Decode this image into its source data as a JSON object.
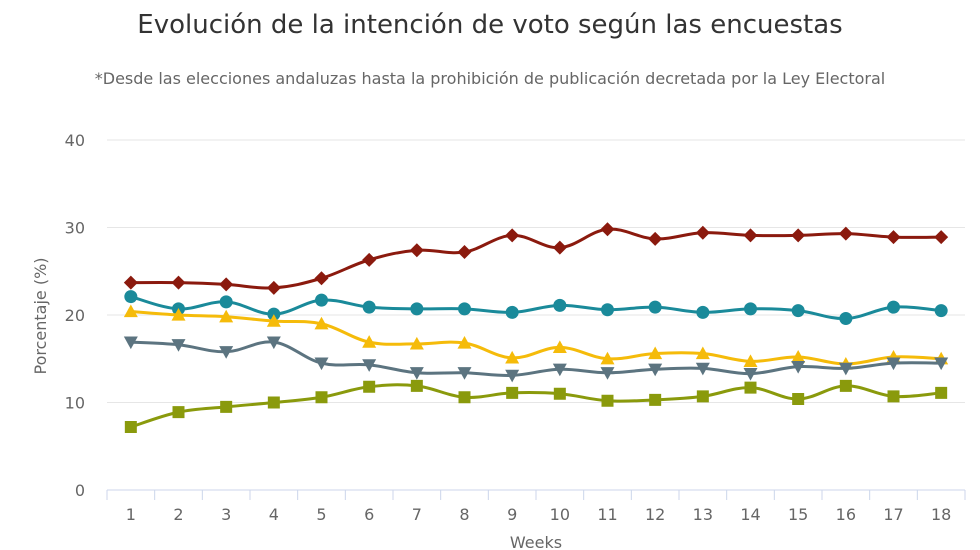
{
  "chart_data": {
    "type": "line",
    "title": "Evolución de la intención de voto según las encuestas",
    "subtitle": "*Desde las elecciones andaluzas hasta la prohibición de publicación decretada por la Ley Electoral",
    "xlabel": "Weeks",
    "ylabel": "Porcentaje (%)",
    "ylim": [
      0,
      40
    ],
    "yticks": [
      0,
      10,
      20,
      30,
      40
    ],
    "categories": [
      "1",
      "2",
      "3",
      "4",
      "5",
      "6",
      "7",
      "8",
      "9",
      "10",
      "11",
      "12",
      "13",
      "14",
      "15",
      "16",
      "17",
      "18"
    ],
    "grid": "horizontal",
    "legend": "none",
    "series": [
      {
        "color": "#8B1A0E",
        "marker": "diamond",
        "values": [
          23.7,
          23.7,
          23.5,
          23.1,
          24.2,
          26.3,
          27.4,
          27.2,
          29.1,
          27.7,
          29.8,
          28.7,
          29.4,
          29.1,
          29.1,
          29.3,
          28.9,
          28.9
        ]
      },
      {
        "color": "#1A8A9A",
        "marker": "circle",
        "values": [
          22.1,
          20.7,
          21.5,
          20.1,
          21.7,
          20.9,
          20.7,
          20.7,
          20.3,
          21.1,
          20.6,
          20.9,
          20.3,
          20.7,
          20.5,
          19.6,
          20.9,
          20.5
        ]
      },
      {
        "color": "#F5BB0A",
        "marker": "triangle-up",
        "values": [
          20.4,
          20.0,
          19.8,
          19.3,
          19.0,
          16.9,
          16.7,
          16.8,
          15.1,
          16.3,
          15.0,
          15.6,
          15.6,
          14.7,
          15.2,
          14.4,
          15.2,
          15.0
        ]
      },
      {
        "color": "#5C7480",
        "marker": "triangle-down",
        "values": [
          16.9,
          16.6,
          15.8,
          16.9,
          14.5,
          14.3,
          13.4,
          13.4,
          13.1,
          13.8,
          13.4,
          13.8,
          13.9,
          13.3,
          14.1,
          13.9,
          14.5,
          14.5
        ]
      },
      {
        "color": "#8A9A0C",
        "marker": "square",
        "values": [
          7.2,
          8.9,
          9.5,
          10.0,
          10.6,
          11.8,
          11.9,
          10.6,
          11.1,
          11.0,
          10.2,
          10.3,
          10.7,
          11.7,
          10.4,
          11.9,
          10.7,
          11.1
        ]
      }
    ]
  }
}
